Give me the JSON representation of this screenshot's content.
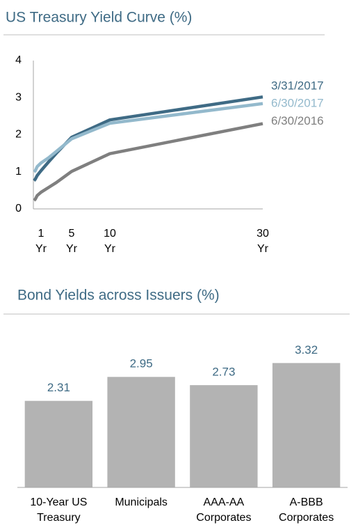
{
  "chart_data": [
    {
      "type": "line",
      "title": "US Treasury Yield Curve (%)",
      "x": [
        0.08,
        0.25,
        0.5,
        1,
        2,
        3,
        5,
        10,
        30
      ],
      "series": [
        {
          "name": "3/31/2017",
          "color": "#3f6b85",
          "values": [
            0.76,
            0.8,
            0.9,
            1.03,
            1.27,
            1.5,
            1.93,
            2.4,
            3.02
          ]
        },
        {
          "name": "6/30/2017",
          "color": "#93b9cc",
          "values": [
            1.0,
            1.03,
            1.14,
            1.24,
            1.38,
            1.55,
            1.89,
            2.31,
            2.84
          ]
        },
        {
          "name": "6/30/2016",
          "color": "#7f7f7f",
          "values": [
            0.23,
            0.26,
            0.36,
            0.45,
            0.58,
            0.71,
            1.01,
            1.49,
            2.3
          ]
        }
      ],
      "xlim": [
        0,
        30
      ],
      "xticks": [
        {
          "value": 1,
          "label": [
            "1",
            "Yr"
          ]
        },
        {
          "value": 5,
          "label": [
            "5",
            "Yr"
          ]
        },
        {
          "value": 10,
          "label": [
            "10",
            "Yr"
          ]
        },
        {
          "value": 30,
          "label": [
            "30",
            "Yr"
          ]
        }
      ],
      "ylim": [
        0,
        4
      ],
      "yticks": [
        0,
        1,
        2,
        3,
        4
      ],
      "grid": false
    },
    {
      "type": "bar",
      "title": "Bond Yields across Issuers (%)",
      "categories": [
        [
          "10-Year US",
          "Treasury"
        ],
        [
          "Municipals"
        ],
        [
          "AAA-AA",
          "Corporates"
        ],
        [
          "A-BBB",
          "Corporates"
        ]
      ],
      "values": [
        2.31,
        2.95,
        2.73,
        3.32
      ],
      "color": "#b3b3b3",
      "ylim": [
        0,
        4.2
      ],
      "grid": false
    }
  ]
}
